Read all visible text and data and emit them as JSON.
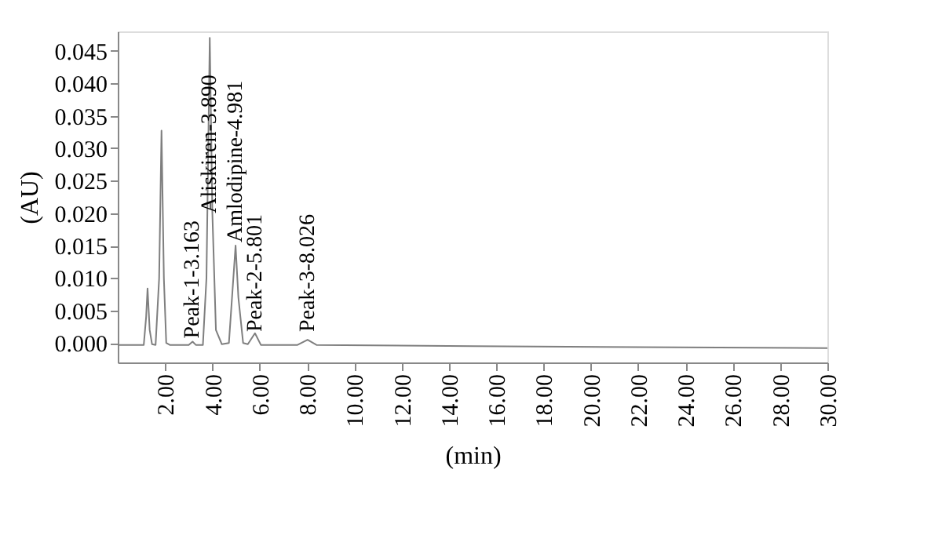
{
  "chart_data": {
    "type": "line",
    "xlabel": "(min)",
    "ylabel": "(AU)",
    "x": [
      0,
      1.1,
      1.2,
      1.26,
      1.35,
      1.45,
      1.6,
      1.75,
      1.85,
      1.95,
      2.05,
      2.2,
      3.0,
      3.163,
      3.3,
      3.6,
      3.75,
      3.89,
      4.0,
      4.15,
      4.4,
      4.7,
      4.85,
      4.981,
      5.1,
      5.3,
      5.5,
      5.801,
      6.05,
      7.6,
      8.026,
      8.4,
      15,
      30
    ],
    "series": [
      {
        "color": "#7f7f7f",
        "values": [
          -0.0003,
          -0.0003,
          0.004,
          0.0084,
          0.002,
          -0.0002,
          -0.0003,
          0.01,
          0.0327,
          0.01,
          0.0,
          -0.0003,
          -0.0003,
          0.0002,
          -0.0003,
          -0.0003,
          0.01,
          0.047,
          0.02,
          0.002,
          -0.0002,
          0.0,
          0.008,
          0.015,
          0.007,
          0.0,
          -0.0002,
          0.0015,
          -0.0003,
          -0.0003,
          0.0005,
          -0.0003,
          -0.0005,
          -0.0008
        ]
      }
    ],
    "xlim": [
      0,
      30
    ],
    "xticks": [
      {
        "value": 2,
        "label": "2.00"
      },
      {
        "value": 4,
        "label": "4.00"
      },
      {
        "value": 6,
        "label": "6.00"
      },
      {
        "value": 8,
        "label": "8.00"
      },
      {
        "value": 10,
        "label": "10.00"
      },
      {
        "value": 12,
        "label": "12.00"
      },
      {
        "value": 14,
        "label": "14.00"
      },
      {
        "value": 16,
        "label": "16.00"
      },
      {
        "value": 18,
        "label": "18.00"
      },
      {
        "value": 20,
        "label": "20.00"
      },
      {
        "value": 22,
        "label": "22.00"
      },
      {
        "value": 24,
        "label": "24.00"
      },
      {
        "value": 26,
        "label": "26.00"
      },
      {
        "value": 28,
        "label": "28.00"
      },
      {
        "value": 30,
        "label": "30.00"
      }
    ],
    "ylim": [
      -0.003,
      0.048
    ],
    "yticks": [
      {
        "value": 0,
        "label": "0.000"
      },
      {
        "value": 0.005,
        "label": "0.005"
      },
      {
        "value": 0.01,
        "label": "0.010"
      },
      {
        "value": 0.015,
        "label": "0.015"
      },
      {
        "value": 0.02,
        "label": "0.020"
      },
      {
        "value": 0.025,
        "label": "0.025"
      },
      {
        "value": 0.03,
        "label": "0.030"
      },
      {
        "value": 0.035,
        "label": "0.035"
      },
      {
        "value": 0.04,
        "label": "0.040"
      },
      {
        "value": 0.045,
        "label": "0.045"
      }
    ],
    "grid": false,
    "annotations": [
      {
        "text": "Peak-1-3.163",
        "x": 3.163,
        "y": 0.0007
      },
      {
        "text": "Aliskiren-3.890",
        "x": 3.89,
        "y": 0.02
      },
      {
        "text": "Amlodipine-4.981",
        "x": 4.981,
        "y": 0.0155
      },
      {
        "text": "Peak-2-5.801",
        "x": 5.801,
        "y": 0.0017
      },
      {
        "text": "Peak-3-8.026",
        "x": 8.026,
        "y": 0.0017
      }
    ]
  }
}
